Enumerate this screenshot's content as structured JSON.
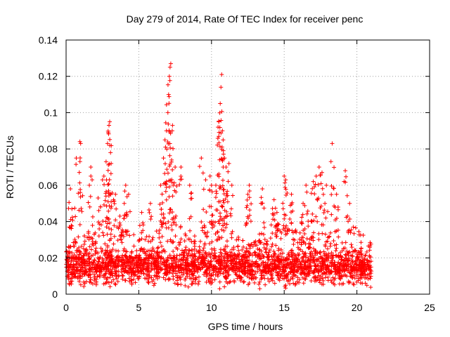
{
  "chart_data": {
    "type": "scatter",
    "title": "Day 279 of 2014, Rate Of TEC Index for receiver penc",
    "xlabel": "GPS time / hours",
    "ylabel": "ROTI / TECUs",
    "xlim": [
      0,
      25
    ],
    "ylim": [
      0,
      0.14
    ],
    "xticks": [
      0,
      5,
      10,
      15,
      20,
      25
    ],
    "xtick_labels": [
      "0",
      "5",
      "10",
      "15",
      "20",
      "25"
    ],
    "yticks": [
      0,
      0.02,
      0.04,
      0.06,
      0.08,
      0.1,
      0.12,
      0.14
    ],
    "ytick_labels": [
      "0",
      "0.02",
      "0.04",
      "0.06",
      "0.08",
      "0.1",
      "0.12",
      "0.14"
    ],
    "grid": true,
    "marker": "+",
    "color": "#ff0000",
    "data_x_range": [
      0,
      21
    ],
    "series": [
      {
        "name": "ROTI",
        "x": [
          0.3,
          0.4,
          0.7,
          0.95,
          1.0,
          1.6,
          1.7,
          2.2,
          2.5,
          2.6,
          2.75,
          2.85,
          2.9,
          2.95,
          3.0,
          3.1,
          3.4,
          3.7,
          4.0,
          4.1,
          4.3,
          5.2,
          5.8,
          6.5,
          6.7,
          6.8,
          6.9,
          7.0,
          7.05,
          7.1,
          7.15,
          7.2,
          7.3,
          7.5,
          7.9,
          8.5,
          9.3,
          9.6,
          9.9,
          10.0,
          10.3,
          10.45,
          10.5,
          10.6,
          10.65,
          10.7,
          10.75,
          10.8,
          10.9,
          11.0,
          11.2,
          11.4,
          12.5,
          12.6,
          13.5,
          14.3,
          14.5,
          15.0,
          15.1,
          15.5,
          16.3,
          16.5,
          17.0,
          17.2,
          17.4,
          17.6,
          17.9,
          18.3,
          18.6,
          19.2,
          19.5
        ],
        "y": [
          0.058,
          0.047,
          0.075,
          0.084,
          0.083,
          0.06,
          0.07,
          0.053,
          0.063,
          0.065,
          0.073,
          0.083,
          0.089,
          0.093,
          0.095,
          0.072,
          0.055,
          0.043,
          0.05,
          0.06,
          0.055,
          0.045,
          0.05,
          0.06,
          0.075,
          0.085,
          0.09,
          0.1,
          0.11,
          0.12,
          0.125,
          0.127,
          0.09,
          0.07,
          0.07,
          0.06,
          0.075,
          0.063,
          0.065,
          0.06,
          0.06,
          0.092,
          0.095,
          0.105,
          0.114,
          0.121,
          0.09,
          0.085,
          0.075,
          0.07,
          0.072,
          0.06,
          0.055,
          0.06,
          0.058,
          0.052,
          0.045,
          0.065,
          0.063,
          0.055,
          0.05,
          0.06,
          0.062,
          0.065,
          0.07,
          0.067,
          0.06,
          0.083,
          0.055,
          0.068,
          0.05
        ]
      }
    ]
  }
}
